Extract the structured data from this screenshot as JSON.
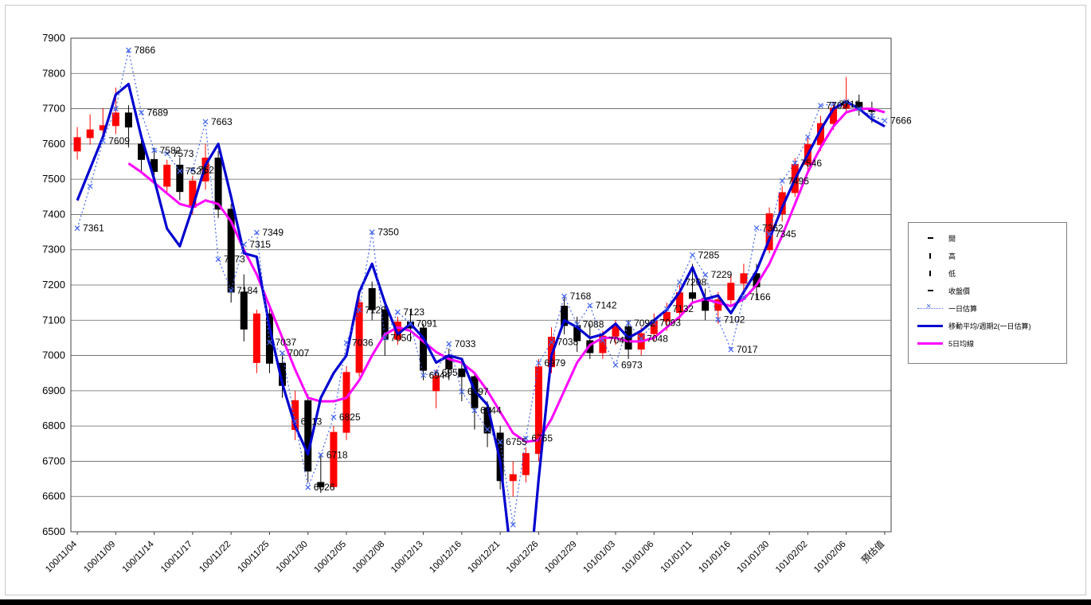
{
  "window": {
    "background": "#ffffff"
  },
  "legend": {
    "items": [
      {
        "label": "開",
        "sample": "tick-h"
      },
      {
        "label": "高",
        "sample": "tick-v"
      },
      {
        "label": "低",
        "sample": "tick-v"
      },
      {
        "label": "收盤價",
        "sample": "tick-h"
      },
      {
        "label": "一日估算",
        "sample": "dotted-x"
      },
      {
        "label": "移動平均/週期2(一日估算)",
        "sample": "blue-line"
      },
      {
        "label": "5日均線",
        "sample": "magenta-line"
      }
    ]
  },
  "chart_data": {
    "type": "candlestick+line",
    "title": "",
    "xlabel": "",
    "ylabel": "",
    "ylim": [
      6500,
      7900
    ],
    "ytick_step": 100,
    "grid": true,
    "legend_position": "right",
    "colors": {
      "up": "#ff0000",
      "down": "#000000",
      "ma2": "#0000d0",
      "ma5": "#ff00ff",
      "est": "#4466ee",
      "grid": "#606060",
      "axis": "#404040",
      "text": "#000000"
    },
    "series_names": {
      "candles": [
        "開",
        "高",
        "低",
        "收盤價"
      ],
      "est": "一日估算",
      "ma2": "移動平均/週期2(一日估算)",
      "ma5": "5日均線"
    },
    "x_labels": [
      "100/11/04",
      "100/11/09",
      "100/11/14",
      "100/11/17",
      "100/11/22",
      "100/11/25",
      "100/11/30",
      "100/12/05",
      "100/12/08",
      "100/12/13",
      "100/12/16",
      "100/12/21",
      "100/12/26",
      "100/12/29",
      "101/01/03",
      "101/01/06",
      "101/01/11",
      "101/01/16",
      "101/01/30",
      "101/02/02",
      "101/02/06",
      "預估值"
    ],
    "points_format": [
      "date",
      "open",
      "high",
      "low",
      "close",
      "est",
      "est_labeled",
      "ma2",
      "ma5"
    ],
    "points": [
      [
        "100/11/04",
        7580,
        7648,
        7556,
        7618,
        7361,
        1,
        7440,
        null
      ],
      [
        "",
        7618,
        7684,
        7598,
        7640,
        7480,
        0,
        7530,
        null
      ],
      [
        "",
        7640,
        7702,
        7612,
        7652,
        7609,
        1,
        7620,
        null
      ],
      [
        "100/11/09",
        7652,
        7760,
        7628,
        7688,
        7700,
        0,
        7740,
        null
      ],
      [
        "",
        7688,
        7710,
        7590,
        7648,
        7866,
        1,
        7770,
        7545
      ],
      [
        "",
        7600,
        7620,
        7520,
        7556,
        7689,
        1,
        7620,
        7520
      ],
      [
        "100/11/14",
        7556,
        7590,
        7500,
        7522,
        7582,
        1,
        7500,
        7490
      ],
      [
        "",
        7480,
        7555,
        7462,
        7540,
        7573,
        1,
        7360,
        7460
      ],
      [
        "",
        7540,
        7562,
        7440,
        7465,
        7523,
        1,
        7310,
        7430
      ],
      [
        "100/11/17",
        7420,
        7510,
        7400,
        7495,
        7526,
        1,
        7420,
        7420
      ],
      [
        "",
        7495,
        7600,
        7470,
        7560,
        7663,
        1,
        7540,
        7440
      ],
      [
        "",
        7560,
        7580,
        7390,
        7415,
        7273,
        1,
        7600,
        7430
      ],
      [
        "100/11/22",
        7415,
        7430,
        7150,
        7180,
        7184,
        1,
        7450,
        7380
      ],
      [
        "",
        7180,
        7230,
        7040,
        7075,
        7315,
        1,
        7290,
        7300
      ],
      [
        "",
        6980,
        7130,
        6950,
        7118,
        7349,
        1,
        7280,
        7230
      ],
      [
        "100/11/25",
        7118,
        7140,
        6950,
        6978,
        7037,
        1,
        7080,
        7140
      ],
      [
        "",
        6978,
        7000,
        6880,
        6915,
        7007,
        1,
        6920,
        7050
      ],
      [
        "",
        6790,
        6900,
        6760,
        6872,
        6813,
        1,
        6800,
        6960
      ],
      [
        "100/11/30",
        6872,
        6890,
        6640,
        6672,
        6626,
        1,
        6720,
        6880
      ],
      [
        "",
        6640,
        6720,
        6610,
        6628,
        6718,
        1,
        6880,
        6870
      ],
      [
        "",
        6628,
        6800,
        6620,
        6782,
        6825,
        1,
        6950,
        6870
      ],
      [
        "100/12/05",
        6782,
        6970,
        6760,
        6952,
        7036,
        1,
        7000,
        6880
      ],
      [
        "",
        6952,
        7180,
        6940,
        7150,
        7129,
        1,
        7180,
        6930
      ],
      [
        "",
        7190,
        7210,
        7100,
        7130,
        7350,
        1,
        7260,
        7000
      ],
      [
        "100/12/08",
        7130,
        7160,
        7000,
        7046,
        7050,
        1,
        7150,
        7060
      ],
      [
        "",
        7046,
        7110,
        7030,
        7095,
        7123,
        1,
        7060,
        7080
      ],
      [
        "",
        7095,
        7130,
        7040,
        7078,
        7091,
        1,
        7090,
        7070
      ],
      [
        "100/12/13",
        7078,
        7090,
        6930,
        6958,
        6944,
        1,
        7050,
        7040
      ],
      [
        "",
        6900,
        6960,
        6850,
        6942,
        6952,
        1,
        6980,
        7010
      ],
      [
        "",
        7000,
        7020,
        6930,
        6962,
        7033,
        1,
        7000,
        6990
      ],
      [
        "100/12/16",
        6962,
        6990,
        6870,
        6940,
        6897,
        1,
        6990,
        6980
      ],
      [
        "",
        6940,
        6950,
        6790,
        6852,
        6844,
        1,
        6900,
        6950
      ],
      [
        "",
        6852,
        6870,
        6740,
        6780,
        6790,
        0,
        6860,
        6900
      ],
      [
        "100/12/21",
        6780,
        6800,
        6620,
        6645,
        6755,
        1,
        6700,
        6840
      ],
      [
        "",
        6645,
        6700,
        6600,
        6662,
        6520,
        0,
        6380,
        6780
      ],
      [
        "",
        6662,
        6740,
        6640,
        6722,
        6765,
        1,
        6250,
        6755
      ],
      [
        "100/12/26",
        6722,
        6990,
        6700,
        6968,
        6979,
        1,
        6650,
        6760
      ],
      [
        "",
        6968,
        7080,
        6950,
        7052,
        7038,
        1,
        7000,
        6820
      ],
      [
        "",
        7140,
        7165,
        7060,
        7085,
        7168,
        1,
        7100,
        6900
      ],
      [
        "100/12/29",
        7085,
        7110,
        7010,
        7042,
        7088,
        1,
        7080,
        6980
      ],
      [
        "",
        7042,
        7090,
        6990,
        7008,
        7142,
        1,
        7050,
        7030
      ],
      [
        "",
        7008,
        7070,
        6990,
        7055,
        7043,
        1,
        7060,
        7050
      ],
      [
        "101/01/03",
        7055,
        7100,
        7030,
        7082,
        6973,
        1,
        7090,
        7050
      ],
      [
        "",
        7082,
        7100,
        6990,
        7018,
        7092,
        1,
        7050,
        7040
      ],
      [
        "",
        7018,
        7080,
        7000,
        7062,
        7048,
        1,
        7070,
        7040
      ],
      [
        "101/01/06",
        7062,
        7120,
        7040,
        7098,
        7093,
        1,
        7100,
        7050
      ],
      [
        "",
        7098,
        7150,
        7070,
        7122,
        7132,
        1,
        7130,
        7080
      ],
      [
        "",
        7122,
        7200,
        7100,
        7178,
        7208,
        1,
        7180,
        7110
      ],
      [
        "101/01/11",
        7178,
        7260,
        7150,
        7162,
        7285,
        1,
        7250,
        7150
      ],
      [
        "",
        7162,
        7190,
        7100,
        7128,
        7229,
        1,
        7160,
        7160
      ],
      [
        "",
        7128,
        7180,
        7090,
        7158,
        7102,
        1,
        7170,
        7150
      ],
      [
        "101/01/16",
        7158,
        7230,
        7140,
        7205,
        7017,
        1,
        7120,
        7140
      ],
      [
        "",
        7205,
        7260,
        7180,
        7232,
        7166,
        1,
        7180,
        7160
      ],
      [
        "",
        7232,
        7260,
        7160,
        7195,
        7362,
        1,
        7240,
        7200
      ],
      [
        "101/01/30",
        7300,
        7420,
        7290,
        7402,
        7345,
        1,
        7330,
        7260
      ],
      [
        "",
        7402,
        7480,
        7380,
        7462,
        7495,
        1,
        7420,
        7340
      ],
      [
        "",
        7462,
        7560,
        7450,
        7542,
        7546,
        1,
        7500,
        7430
      ],
      [
        "101/02/02",
        7542,
        7620,
        7520,
        7598,
        7620,
        0,
        7570,
        7520
      ],
      [
        "",
        7598,
        7680,
        7580,
        7658,
        7709,
        1,
        7640,
        7590
      ],
      [
        "",
        7658,
        7720,
        7640,
        7702,
        7713,
        1,
        7700,
        7650
      ],
      [
        "101/02/06",
        7702,
        7790,
        7690,
        7718,
        7720,
        0,
        7720,
        7690
      ],
      [
        "",
        7718,
        7740,
        7680,
        7698,
        7700,
        0,
        7700,
        7700
      ],
      [
        "",
        7698,
        7720,
        7660,
        7692,
        7680,
        0,
        7670,
        7700
      ],
      [
        "預估值",
        null,
        null,
        null,
        null,
        7666,
        1,
        7650,
        7690
      ]
    ]
  }
}
